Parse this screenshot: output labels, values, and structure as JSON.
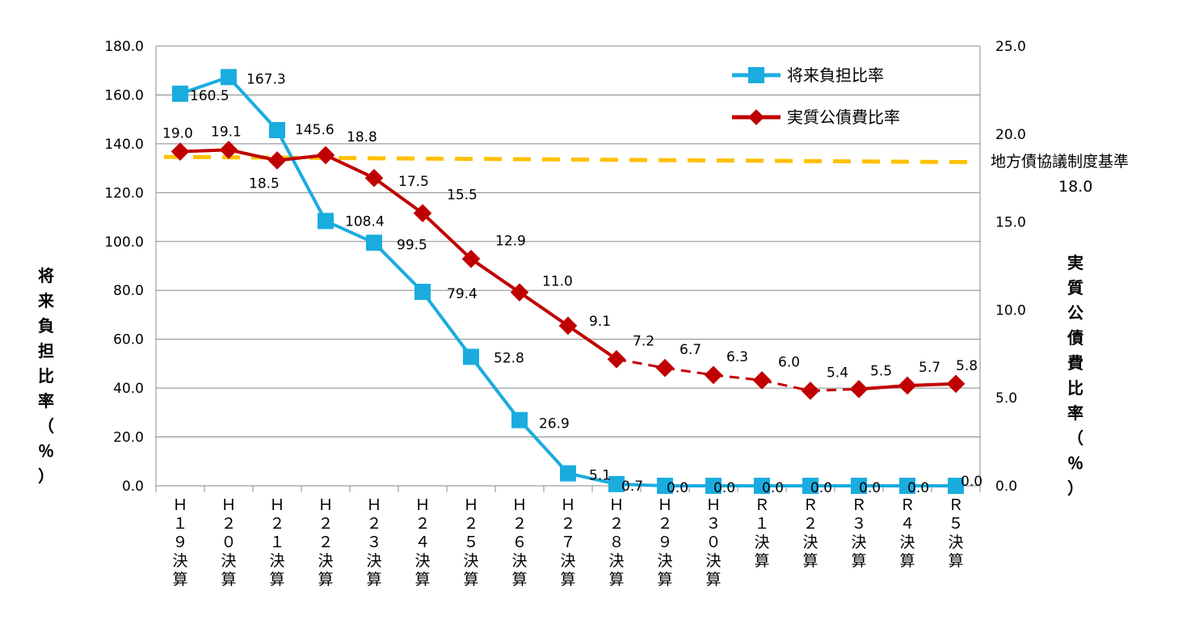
{
  "chart_data": {
    "type": "line",
    "categories": [
      "Ｈ１９決算",
      "Ｈ２０決算",
      "Ｈ２１決算",
      "Ｈ２２決算",
      "Ｈ２３決算",
      "Ｈ２４決算",
      "Ｈ２５決算",
      "Ｈ２６決算",
      "Ｈ２７決算",
      "Ｈ２８決算",
      "Ｈ２９決算",
      "Ｈ３０決算",
      "Ｒ１決算",
      "Ｒ２決算",
      "Ｒ３決算",
      "Ｒ４決算",
      "Ｒ５決算"
    ],
    "y_left": {
      "label": "将来負担比率（％）",
      "ylim": [
        0,
        180
      ],
      "ticks": [
        "0.0",
        "20.0",
        "40.0",
        "60.0",
        "80.0",
        "100.0",
        "120.0",
        "140.0",
        "160.0",
        "180.0"
      ]
    },
    "y_right": {
      "label": "実質公債費比率（％）",
      "ylim": [
        0,
        25
      ],
      "ticks": [
        "0.0",
        "5.0",
        "10.0",
        "15.0",
        "20.0",
        "25.0"
      ]
    },
    "series": [
      {
        "name": "将来負担比率",
        "axis": "left",
        "color": "#1aacdf",
        "marker": "square",
        "values": [
          160.5,
          167.3,
          145.6,
          108.4,
          99.5,
          79.4,
          52.8,
          26.9,
          5.1,
          0.7,
          0.0,
          0.0,
          0.0,
          0.0,
          0.0,
          0.0,
          0.0
        ],
        "labels": [
          "160.5",
          "167.3",
          "145.6",
          "108.4",
          "99.5",
          "79.4",
          "52.8",
          "26.9",
          "5.1",
          "0.7",
          "0.0",
          "0.0",
          "0.0",
          "0.0",
          "0.0",
          "0.0",
          "0.0"
        ]
      },
      {
        "name": "実質公債費比率",
        "axis": "right",
        "color": "#c00000",
        "marker": "diamond",
        "values": [
          19.0,
          19.1,
          18.5,
          18.8,
          17.5,
          15.5,
          12.9,
          11.0,
          9.1,
          7.2,
          6.7,
          6.3,
          6.0,
          5.4,
          5.5,
          5.7,
          5.8
        ],
        "labels": [
          "19.0",
          "19.1",
          "18.5",
          "18.8",
          "17.5",
          "15.5",
          "12.9",
          "11.0",
          "9.1",
          "7.2",
          "6.7",
          "6.3",
          "6.0",
          "5.4",
          "5.5",
          "5.7",
          "5.8"
        ],
        "dashed_segments_from_index": 9,
        "dashed_segments_to_index": 14
      }
    ],
    "reference_line": {
      "label": "地方債協議制度基準",
      "value_label": "18.0",
      "axis": "right",
      "value_start": 18.7,
      "value_end": 18.4,
      "color": "#ffc000"
    },
    "legend_position": "top-right",
    "grid": true
  }
}
